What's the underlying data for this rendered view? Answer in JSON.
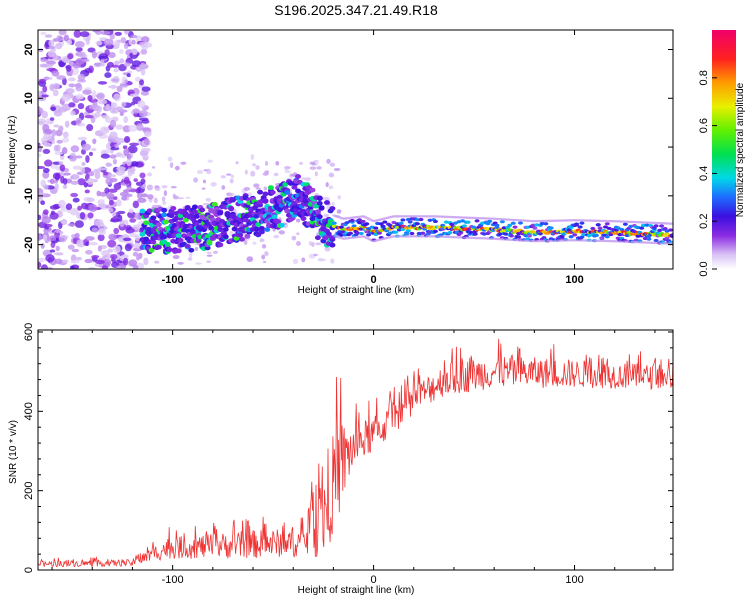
{
  "chart_data": [
    {
      "type": "heatmap",
      "title": "S196.2025.347.21.49.R18",
      "xlabel": "Height of straight line (km)",
      "ylabel": "Frequency (Hz)",
      "xlim": [
        -167,
        149
      ],
      "ylim": [
        -25,
        24
      ],
      "xticks": [
        -100,
        0,
        100
      ],
      "yticks": [
        -20,
        -10,
        0,
        10,
        20
      ],
      "colorbar": {
        "label": "Normalized spectral amplitude",
        "range": [
          0,
          1
        ],
        "ticks": [
          0.0,
          0.2,
          0.4,
          0.6,
          0.8
        ]
      },
      "ridge": [
        {
          "x": -115,
          "f": -17.5
        },
        {
          "x": -100,
          "f": -17
        },
        {
          "x": -85,
          "f": -16.5
        },
        {
          "x": -70,
          "f": -15
        },
        {
          "x": -55,
          "f": -13.5
        },
        {
          "x": -45,
          "f": -11.5
        },
        {
          "x": -38,
          "f": -10
        },
        {
          "x": -32,
          "f": -12.5
        },
        {
          "x": -25,
          "f": -15.5
        },
        {
          "x": -15,
          "f": -17
        },
        {
          "x": -5,
          "f": -16.5
        },
        {
          "x": 0,
          "f": -17.5
        },
        {
          "x": 10,
          "f": -16.5
        },
        {
          "x": 30,
          "f": -16.5
        },
        {
          "x": 60,
          "f": -17
        },
        {
          "x": 80,
          "f": -17.5
        },
        {
          "x": 100,
          "f": -17.3
        },
        {
          "x": 120,
          "f": -17.5
        },
        {
          "x": 148,
          "f": -18
        }
      ]
    },
    {
      "type": "line",
      "xlabel": "Height of straight line (km)",
      "ylabel": "SNR (10 * v/v)",
      "xlim": [
        -167,
        149
      ],
      "ylim": [
        0,
        605
      ],
      "xticks": [
        -100,
        0,
        100
      ],
      "yticks": [
        0,
        200,
        400,
        600
      ],
      "color": "#ee3333",
      "envelope": [
        {
          "x": -167,
          "mean": 15,
          "spread": 12
        },
        {
          "x": -120,
          "mean": 18,
          "spread": 14
        },
        {
          "x": -103,
          "mean": 55,
          "spread": 45
        },
        {
          "x": -60,
          "mean": 65,
          "spread": 60
        },
        {
          "x": -35,
          "mean": 70,
          "spread": 60
        },
        {
          "x": -25,
          "mean": 140,
          "spread": 190
        },
        {
          "x": -18,
          "mean": 250,
          "spread": 220
        },
        {
          "x": -10,
          "mean": 310,
          "spread": 90
        },
        {
          "x": 5,
          "mean": 360,
          "spread": 70
        },
        {
          "x": 20,
          "mean": 430,
          "spread": 60
        },
        {
          "x": 35,
          "mean": 480,
          "spread": 70
        },
        {
          "x": 60,
          "mean": 500,
          "spread": 70
        },
        {
          "x": 100,
          "mean": 495,
          "spread": 60
        },
        {
          "x": 149,
          "mean": 485,
          "spread": 50
        }
      ]
    }
  ]
}
